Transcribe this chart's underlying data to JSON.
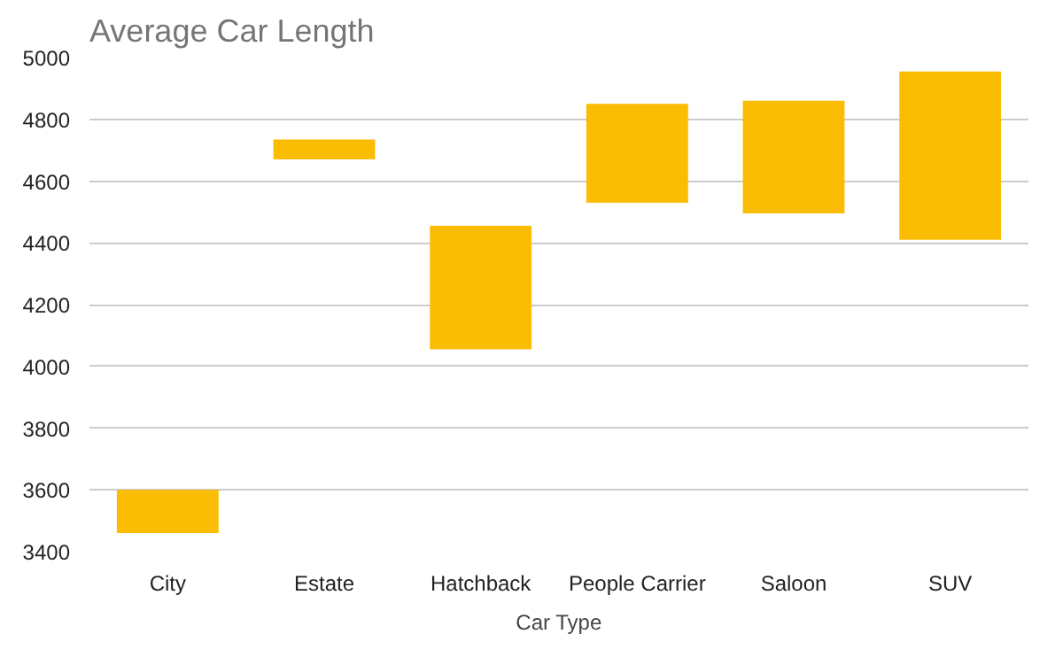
{
  "chart_data": {
    "type": "bar",
    "title": "Average Car Length",
    "xlabel": "Car Type",
    "categories": [
      "City",
      "Estate",
      "Hatchback",
      "People Carrier",
      "Saloon",
      "SUV"
    ],
    "base": [
      3460,
      4670,
      4055,
      4530,
      4495,
      4410
    ],
    "values": [
      140,
      65,
      400,
      320,
      365,
      545
    ],
    "color": "#fbbc04",
    "ylim": [
      3400,
      5000
    ],
    "yticks": [
      3400,
      3600,
      3800,
      4000,
      4200,
      4400,
      4600,
      4800,
      5000
    ],
    "grid": "y"
  }
}
